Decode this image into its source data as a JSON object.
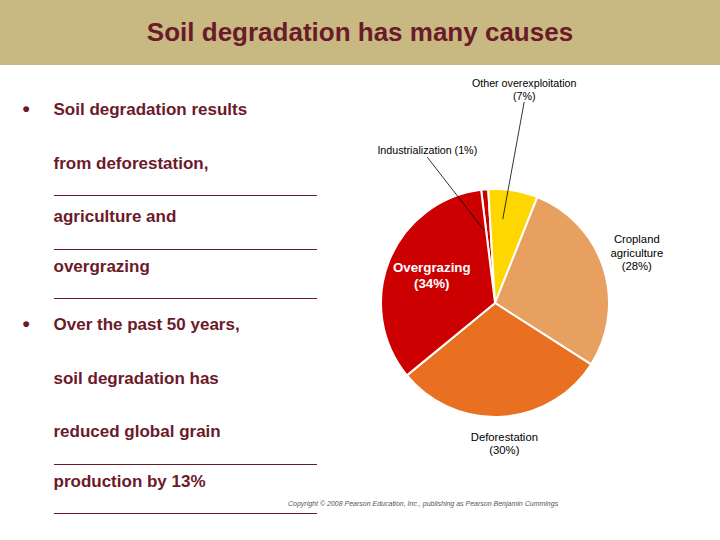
{
  "chart_data": {
    "type": "pie",
    "title": "Soil degradation has many causes",
    "values": [
      1,
      7,
      28,
      30,
      34
    ],
    "value_labels": [
      "Industrialization (1%)",
      "Other overexploitation\n(7%)",
      "Cropland\nagriculture\n(28%)",
      "Deforestation\n(30%)",
      "Overgrazing\n(34%)"
    ],
    "colors": [
      "#CC0000",
      "#FFD700",
      "#E8A060",
      "#E87020",
      "#CC0000"
    ],
    "data_labels": true,
    "annotations": [
      {
        "bullet": "•",
        "lines": [
          "Soil degradation results",
          "from deforestation,",
          "agriculture and",
          "overgrazing"
        ]
      },
      {
        "bullet": "•",
        "lines": [
          "Over the past 50 years,",
          "soil degradation has",
          "reduced global grain",
          "production by 13%"
        ]
      },
      {
        "text": "Copyright © 2008 Pearson Education, Inc., publishing as Pearson Benjamin Cummings"
      }
    ]
  }
}
